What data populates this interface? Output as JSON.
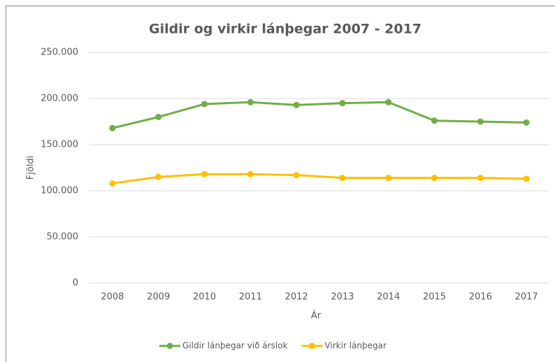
{
  "chart_data": {
    "type": "line",
    "title": "Gildir og virkir lánþegar 2007 - 2017",
    "x_label": "Ár",
    "y_label": "Fjöldi",
    "categories": [
      "2008",
      "2009",
      "2010",
      "2011",
      "2012",
      "2013",
      "2014",
      "2015",
      "2016",
      "2017"
    ],
    "series": [
      {
        "name": "Gildir lánþegar við árslok",
        "color": "#70ad47",
        "values": [
          168000,
          180000,
          194000,
          196000,
          193000,
          195000,
          196000,
          176000,
          175000,
          174000
        ]
      },
      {
        "name": "Virkir lánþegar",
        "color": "#ffc000",
        "values": [
          108000,
          115000,
          118000,
          118000,
          117000,
          114000,
          114000,
          114000,
          114000,
          113000
        ]
      }
    ],
    "ylim": [
      0,
      250000
    ],
    "yticks": [
      0,
      {
        "value": 50000,
        "label": "50.000"
      },
      {
        "value": 100000,
        "label": "100.000"
      },
      {
        "value": 150000,
        "label": "150.000"
      },
      {
        "value": 200000,
        "label": "200.000"
      },
      {
        "value": 250000,
        "label": "250.000"
      }
    ],
    "grid": true,
    "legend": "bottom"
  }
}
